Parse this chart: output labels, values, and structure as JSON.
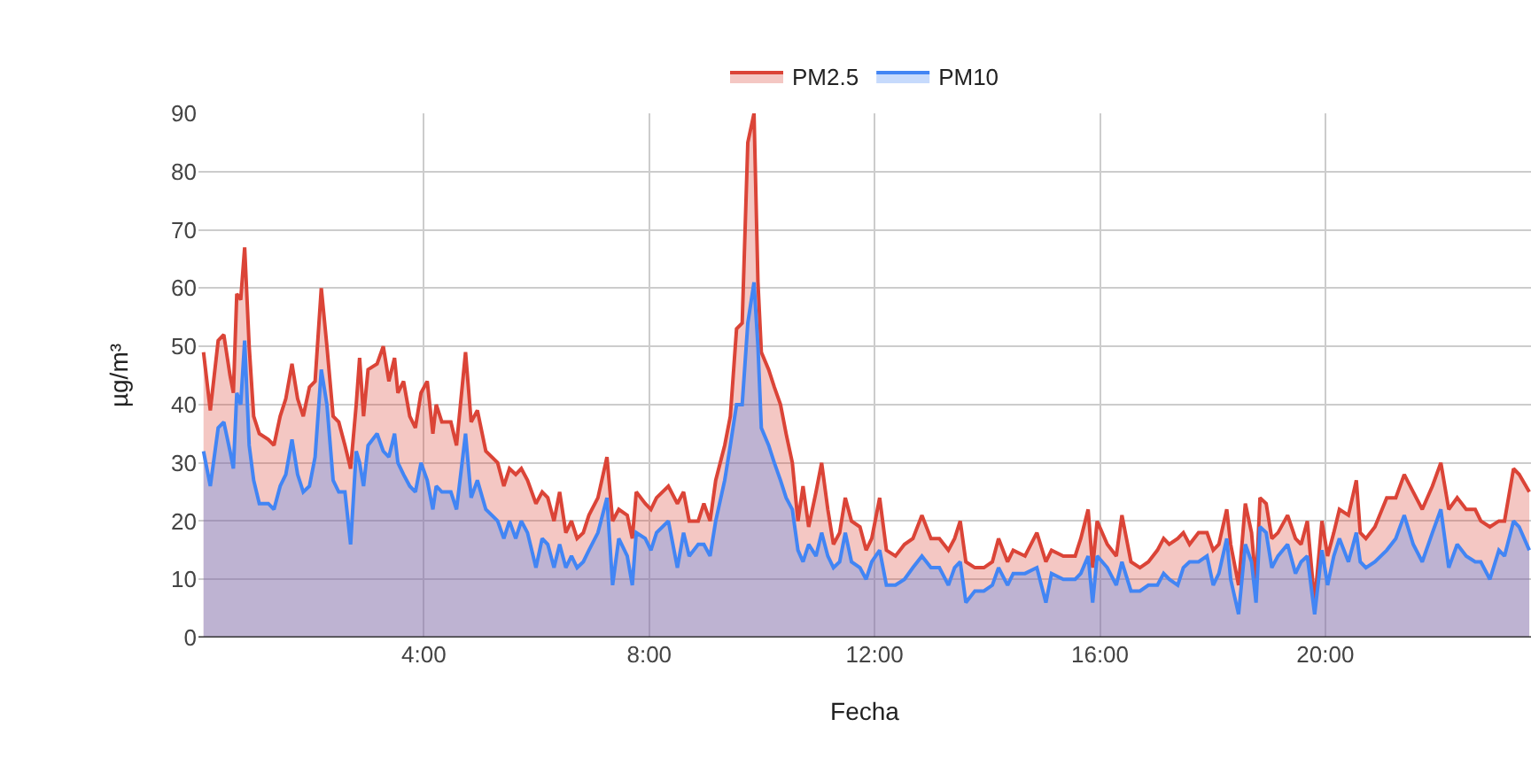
{
  "chart_data": {
    "type": "area",
    "xlabel": "Fecha",
    "ylabel": "µg/m³",
    "x": [
      0.09,
      0.21,
      0.35,
      0.45,
      0.56,
      0.62,
      0.68,
      0.75,
      0.82,
      0.9,
      0.98,
      1.08,
      1.24,
      1.34,
      1.45,
      1.55,
      1.66,
      1.76,
      1.86,
      1.97,
      2.07,
      2.18,
      2.28,
      2.39,
      2.49,
      2.6,
      2.7,
      2.8,
      2.86,
      2.93,
      3.01,
      3.17,
      3.28,
      3.38,
      3.48,
      3.54,
      3.64,
      3.75,
      3.85,
      3.95,
      4.06,
      4.16,
      4.22,
      4.32,
      4.48,
      4.58,
      4.74,
      4.84,
      4.95,
      5.1,
      5.31,
      5.42,
      5.52,
      5.63,
      5.73,
      5.84,
      5.99,
      6.1,
      6.2,
      6.31,
      6.41,
      6.52,
      6.62,
      6.72,
      6.83,
      6.93,
      7.09,
      7.25,
      7.35,
      7.46,
      7.61,
      7.7,
      7.77,
      7.93,
      8.03,
      8.13,
      8.34,
      8.5,
      8.61,
      8.71,
      8.87,
      8.97,
      9.08,
      9.18,
      9.34,
      9.44,
      9.55,
      9.65,
      9.75,
      9.86,
      9.93,
      9.99,
      10.12,
      10.22,
      10.33,
      10.43,
      10.54,
      10.64,
      10.73,
      10.83,
      10.96,
      11.06,
      11.17,
      11.27,
      11.38,
      11.48,
      11.59,
      11.74,
      11.85,
      11.95,
      12.09,
      12.21,
      12.37,
      12.53,
      12.68,
      12.84,
      13.0,
      13.15,
      13.31,
      13.42,
      13.52,
      13.62,
      13.78,
      13.94,
      14.09,
      14.2,
      14.36,
      14.46,
      14.67,
      14.88,
      15.04,
      15.14,
      15.35,
      15.56,
      15.66,
      15.79,
      15.87,
      15.95,
      16.13,
      16.29,
      16.39,
      16.55,
      16.71,
      16.86,
      17.02,
      17.13,
      17.23,
      17.38,
      17.48,
      17.59,
      17.75,
      17.9,
      18.01,
      18.11,
      18.25,
      18.32,
      18.46,
      18.58,
      18.69,
      18.77,
      18.84,
      18.95,
      19.05,
      19.16,
      19.33,
      19.47,
      19.57,
      19.68,
      19.81,
      19.94,
      20.04,
      20.15,
      20.25,
      20.41,
      20.55,
      20.62,
      20.72,
      20.88,
      21.09,
      21.25,
      21.4,
      21.56,
      21.72,
      21.9,
      22.05,
      22.19,
      22.34,
      22.5,
      22.66,
      22.76,
      22.92,
      23.08,
      23.18,
      23.34,
      23.44,
      23.62
    ],
    "series": [
      {
        "name": "PM2.5",
        "color": "#db4437",
        "values": [
          49,
          39,
          51,
          52,
          45,
          42,
          59,
          58,
          67,
          50,
          38,
          35,
          34,
          33,
          38,
          41,
          47,
          41,
          38,
          43,
          44,
          60,
          50,
          38,
          37,
          33,
          29,
          40,
          48,
          38,
          46,
          47,
          50,
          44,
          48,
          42,
          44,
          38,
          36,
          42,
          44,
          35,
          40,
          37,
          37,
          33,
          49,
          37,
          39,
          32,
          30,
          26,
          29,
          28,
          29,
          27,
          23,
          25,
          24,
          20,
          25,
          18,
          20,
          17,
          18,
          21,
          24,
          31,
          20,
          22,
          21,
          17,
          25,
          23,
          22,
          24,
          26,
          23,
          25,
          20,
          20,
          23,
          20,
          27,
          33,
          38,
          53,
          54,
          85,
          90,
          61,
          49,
          46,
          43,
          40,
          35,
          30,
          20,
          26,
          19,
          25,
          30,
          22,
          16,
          18,
          24,
          20,
          19,
          15,
          17,
          24,
          15,
          14,
          16,
          17,
          21,
          17,
          17,
          15,
          17,
          20,
          13,
          12,
          12,
          13,
          17,
          13,
          15,
          14,
          18,
          13,
          15,
          14,
          14,
          17,
          22,
          12,
          20,
          16,
          14,
          21,
          13,
          12,
          13,
          15,
          17,
          16,
          17,
          18,
          16,
          18,
          18,
          15,
          16,
          22,
          16,
          9,
          23,
          18,
          9,
          24,
          23,
          17,
          18,
          21,
          17,
          16,
          20,
          6,
          20,
          14,
          18,
          22,
          21,
          27,
          18,
          17,
          19,
          24,
          24,
          28,
          25,
          22,
          26,
          30,
          22,
          24,
          22,
          22,
          20,
          19,
          20,
          20,
          29,
          28,
          25
        ]
      },
      {
        "name": "PM10",
        "color": "#4285f4",
        "values": [
          32,
          26,
          36,
          37,
          32,
          29,
          42,
          40,
          51,
          33,
          27,
          23,
          23,
          22,
          26,
          28,
          34,
          28,
          25,
          26,
          31,
          46,
          40,
          27,
          25,
          25,
          16,
          32,
          30,
          26,
          33,
          35,
          32,
          31,
          35,
          30,
          28,
          26,
          25,
          30,
          27,
          22,
          26,
          25,
          25,
          22,
          35,
          24,
          27,
          22,
          20,
          17,
          20,
          17,
          20,
          18,
          12,
          17,
          16,
          12,
          16,
          12,
          14,
          12,
          13,
          15,
          18,
          24,
          9,
          17,
          14,
          9,
          18,
          17,
          15,
          18,
          20,
          12,
          18,
          14,
          16,
          16,
          14,
          20,
          27,
          33,
          40,
          40,
          54,
          61,
          50,
          36,
          33,
          30,
          27,
          24,
          22,
          15,
          13,
          16,
          14,
          18,
          14,
          12,
          13,
          18,
          13,
          12,
          10,
          13,
          15,
          9,
          9,
          10,
          12,
          14,
          12,
          12,
          9,
          12,
          13,
          6,
          8,
          8,
          9,
          12,
          9,
          11,
          11,
          12,
          6,
          11,
          10,
          10,
          11,
          14,
          6,
          14,
          12,
          9,
          13,
          8,
          8,
          9,
          9,
          11,
          10,
          9,
          12,
          13,
          13,
          14,
          9,
          11,
          17,
          10,
          4,
          16,
          13,
          6,
          19,
          18,
          12,
          14,
          16,
          11,
          13,
          14,
          4,
          15,
          9,
          14,
          17,
          13,
          18,
          13,
          12,
          13,
          15,
          17,
          21,
          16,
          13,
          18,
          22,
          12,
          16,
          14,
          13,
          13,
          10,
          15,
          14,
          20,
          19,
          15
        ]
      }
    ],
    "xlim": [
      0,
      23.65
    ],
    "xticks": [
      {
        "value": 4,
        "label": "4:00"
      },
      {
        "value": 8,
        "label": "8:00"
      },
      {
        "value": 12,
        "label": "12:00"
      },
      {
        "value": 16,
        "label": "16:00"
      },
      {
        "value": 20,
        "label": "20:00"
      }
    ],
    "ylim": [
      0,
      90
    ],
    "yticks": [
      0,
      10,
      20,
      30,
      40,
      50,
      60,
      70,
      80,
      90
    ],
    "grid": true,
    "legend": "top"
  }
}
